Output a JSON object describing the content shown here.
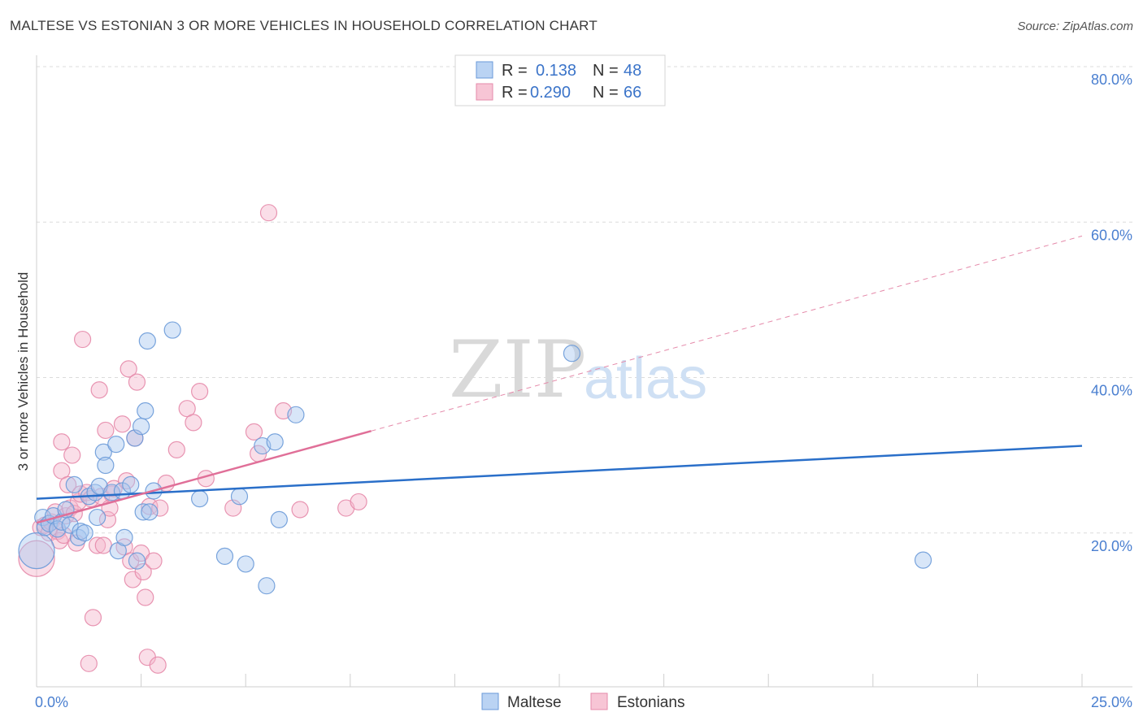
{
  "title": "MALTESE VS ESTONIAN 3 OR MORE VEHICLES IN HOUSEHOLD CORRELATION CHART",
  "source": "Source: ZipAtlas.com",
  "watermark": {
    "zip": "ZIP",
    "atlas": "atlas"
  },
  "legend": {
    "r_label": "R =",
    "n_label": "N =",
    "rows": [
      {
        "name": "Maltese",
        "r": "0.138",
        "n": "48",
        "color": "#a9c8f0"
      },
      {
        "name": "Estonians",
        "r": "0.290",
        "n": "66",
        "color": "#f5b6cb"
      }
    ]
  },
  "chart_data": {
    "type": "scatter",
    "title": "MALTESE VS ESTONIAN 3 OR MORE VEHICLES IN HOUSEHOLD CORRELATION CHART",
    "xlabel": "",
    "ylabel": "3 or more Vehicles in Household",
    "xlim": [
      0,
      25
    ],
    "ylim": [
      0,
      80
    ],
    "x_tick_labels": [
      "0.0%",
      "25.0%"
    ],
    "y_ticks": [
      20,
      40,
      60,
      80
    ],
    "y_tick_labels": [
      "20.0%",
      "40.0%",
      "60.0%",
      "80.0%"
    ],
    "colors": {
      "maltese": "#a9c8f0",
      "maltese_edge": "#6a9ad8",
      "maltese_line": "#2a6fc9",
      "estonians": "#f5b6cb",
      "estonians_edge": "#e58aaa",
      "estonians_line": "#e06f98"
    },
    "series": [
      {
        "name": "Maltese",
        "r": 0.138,
        "n": 48,
        "trend": {
          "x0": 0,
          "y0": 24.2,
          "x1": 25,
          "y1": 31.0,
          "dashed_from": null
        },
        "points": [
          [
            0.0,
            17.5,
            22
          ],
          [
            0.15,
            21.8,
            10
          ],
          [
            0.2,
            20.5,
            10
          ],
          [
            0.3,
            21.0,
            10
          ],
          [
            0.4,
            22.0,
            10
          ],
          [
            0.5,
            20.3,
            10
          ],
          [
            0.6,
            21.2,
            10
          ],
          [
            0.7,
            22.8,
            10
          ],
          [
            0.8,
            20.8,
            10
          ],
          [
            0.9,
            26.0,
            10
          ],
          [
            1.0,
            19.2,
            10
          ],
          [
            1.05,
            20.0,
            10
          ],
          [
            1.15,
            19.8,
            10
          ],
          [
            1.25,
            24.5,
            10
          ],
          [
            1.4,
            25.0,
            10
          ],
          [
            1.45,
            21.8,
            10
          ],
          [
            1.5,
            25.8,
            10
          ],
          [
            1.6,
            30.2,
            10
          ],
          [
            1.65,
            28.5,
            10
          ],
          [
            1.8,
            25.0,
            10
          ],
          [
            1.9,
            31.2,
            10
          ],
          [
            1.95,
            17.5,
            10
          ],
          [
            2.05,
            25.2,
            10
          ],
          [
            2.1,
            19.2,
            10
          ],
          [
            2.25,
            26.0,
            10
          ],
          [
            2.35,
            32.0,
            10
          ],
          [
            2.4,
            16.2,
            10
          ],
          [
            2.5,
            33.5,
            10
          ],
          [
            2.55,
            22.5,
            10
          ],
          [
            2.6,
            35.5,
            10
          ],
          [
            2.65,
            44.5,
            10
          ],
          [
            2.7,
            22.5,
            10
          ],
          [
            2.8,
            25.2,
            10
          ],
          [
            3.25,
            45.9,
            10
          ],
          [
            3.9,
            24.2,
            10
          ],
          [
            4.5,
            16.8,
            10
          ],
          [
            4.85,
            24.5,
            10
          ],
          [
            5.0,
            15.8,
            10
          ],
          [
            5.4,
            31.0,
            10
          ],
          [
            5.5,
            13.0,
            10
          ],
          [
            5.7,
            31.5,
            10
          ],
          [
            5.8,
            21.5,
            10
          ],
          [
            6.2,
            35.0,
            10
          ],
          [
            12.8,
            42.9,
            10
          ],
          [
            21.2,
            16.3,
            10
          ]
        ]
      },
      {
        "name": "Estonians",
        "r": 0.29,
        "n": 66,
        "trend": {
          "x0": 0,
          "y0": 21.1,
          "x1": 25,
          "y1": 58.0,
          "solid_until": 8.0
        },
        "points": [
          [
            0.0,
            16.5,
            22
          ],
          [
            0.1,
            20.5,
            10
          ],
          [
            0.2,
            20.8,
            10
          ],
          [
            0.3,
            19.8,
            10
          ],
          [
            0.35,
            21.2,
            10
          ],
          [
            0.45,
            22.5,
            10
          ],
          [
            0.5,
            20.0,
            10
          ],
          [
            0.55,
            18.8,
            10
          ],
          [
            0.6,
            27.8,
            10
          ],
          [
            0.6,
            31.5,
            10
          ],
          [
            0.65,
            19.5,
            10
          ],
          [
            0.7,
            22.0,
            10
          ],
          [
            0.75,
            26.0,
            10
          ],
          [
            0.8,
            23.0,
            10
          ],
          [
            0.85,
            29.8,
            10
          ],
          [
            0.9,
            22.3,
            10
          ],
          [
            0.95,
            18.5,
            10
          ],
          [
            1.0,
            23.8,
            10
          ],
          [
            1.05,
            24.8,
            10
          ],
          [
            1.1,
            44.7,
            10
          ],
          [
            1.2,
            25.0,
            10
          ],
          [
            1.25,
            3.0,
            10
          ],
          [
            1.3,
            24.2,
            10
          ],
          [
            1.35,
            8.9,
            10
          ],
          [
            1.45,
            18.2,
            10
          ],
          [
            1.5,
            38.2,
            10
          ],
          [
            1.55,
            24.5,
            10
          ],
          [
            1.6,
            18.2,
            10
          ],
          [
            1.65,
            33.0,
            10
          ],
          [
            1.7,
            21.5,
            10
          ],
          [
            1.75,
            23.0,
            10
          ],
          [
            1.8,
            24.8,
            10
          ],
          [
            1.85,
            25.5,
            10
          ],
          [
            2.05,
            33.8,
            10
          ],
          [
            2.1,
            18.0,
            10
          ],
          [
            2.15,
            26.5,
            10
          ],
          [
            2.2,
            40.9,
            10
          ],
          [
            2.25,
            16.2,
            10
          ],
          [
            2.3,
            13.8,
            10
          ],
          [
            2.35,
            32.0,
            10
          ],
          [
            2.4,
            39.2,
            10
          ],
          [
            2.5,
            17.2,
            10
          ],
          [
            2.55,
            14.8,
            10
          ],
          [
            2.6,
            11.5,
            10
          ],
          [
            2.65,
            3.8,
            10
          ],
          [
            2.7,
            23.2,
            10
          ],
          [
            2.8,
            16.2,
            10
          ],
          [
            2.9,
            2.8,
            10
          ],
          [
            2.95,
            23.0,
            10
          ],
          [
            3.1,
            26.2,
            10
          ],
          [
            3.35,
            30.5,
            10
          ],
          [
            3.6,
            35.8,
            10
          ],
          [
            3.75,
            34.0,
            10
          ],
          [
            3.9,
            38.0,
            10
          ],
          [
            4.05,
            26.8,
            10
          ],
          [
            4.7,
            23.0,
            10
          ],
          [
            5.2,
            32.8,
            10
          ],
          [
            5.3,
            30.0,
            10
          ],
          [
            5.55,
            61.0,
            10
          ],
          [
            5.9,
            35.5,
            10
          ],
          [
            6.3,
            22.8,
            10
          ],
          [
            7.4,
            23.0,
            10
          ],
          [
            7.7,
            23.8,
            10
          ]
        ]
      }
    ]
  }
}
